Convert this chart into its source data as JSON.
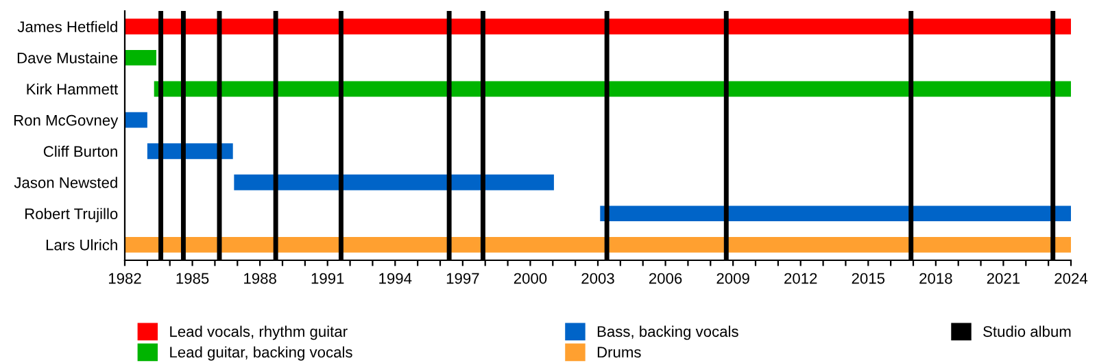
{
  "chart_data": {
    "type": "bar",
    "orientation": "horizontal",
    "categories": [
      "James Hetfield",
      "Dave Mustaine",
      "Kirk Hammett",
      "Ron McGovney",
      "Cliff Burton",
      "Jason Newsted",
      "Robert Trujillo",
      "Lars Ulrich"
    ],
    "series": [
      {
        "name": "Lead vocals, rhythm guitar",
        "color": "#ff0000",
        "values": [
          42,
          null,
          null,
          null,
          null,
          null,
          null,
          null
        ],
        "base": [
          1982,
          null,
          null,
          null,
          null,
          null,
          null,
          null
        ]
      },
      {
        "name": "Lead guitar, backing vocals",
        "color": "#00b400",
        "values": [
          null,
          1.4,
          40.7,
          null,
          null,
          null,
          null,
          null
        ],
        "base": [
          null,
          1982,
          1983.3,
          null,
          null,
          null,
          null,
          null
        ]
      },
      {
        "name": "Bass, backing vocals",
        "color": "#0064c8",
        "values": [
          null,
          null,
          null,
          1.0,
          3.8,
          14.2,
          20.9,
          null
        ],
        "base": [
          null,
          null,
          null,
          1982,
          1983.0,
          1986.85,
          2003.1,
          null
        ]
      },
      {
        "name": "Drums",
        "color": "#ffa030",
        "values": [
          null,
          null,
          null,
          null,
          null,
          null,
          null,
          42
        ],
        "base": [
          null,
          null,
          null,
          null,
          null,
          null,
          null,
          1982
        ]
      }
    ],
    "ref_lines": [
      {
        "axis": "x",
        "value": 1983.6,
        "label": "Studio album",
        "color": "#000000"
      },
      {
        "axis": "x",
        "value": 1984.6,
        "color": "#000000"
      },
      {
        "axis": "x",
        "value": 1986.2,
        "color": "#000000"
      },
      {
        "axis": "x",
        "value": 1988.7,
        "color": "#000000"
      },
      {
        "axis": "x",
        "value": 1991.6,
        "color": "#000000"
      },
      {
        "axis": "x",
        "value": 1996.4,
        "color": "#000000"
      },
      {
        "axis": "x",
        "value": 1997.9,
        "color": "#000000"
      },
      {
        "axis": "x",
        "value": 2003.4,
        "color": "#000000"
      },
      {
        "axis": "x",
        "value": 2008.7,
        "color": "#000000"
      },
      {
        "axis": "x",
        "value": 2016.9,
        "color": "#000000"
      },
      {
        "axis": "x",
        "value": 2023.2,
        "color": "#000000"
      }
    ],
    "xlim": [
      1982,
      2024
    ],
    "xticks": [
      1982,
      {
        "value": 1983,
        "label": null
      },
      {
        "value": 1984,
        "label": null
      },
      1985,
      {
        "value": 1986,
        "label": null
      },
      {
        "value": 1987,
        "label": null
      },
      1988,
      {
        "value": 1989,
        "label": null
      },
      {
        "value": 1990,
        "label": null
      },
      1991,
      {
        "value": 1992,
        "label": null
      },
      {
        "value": 1993,
        "label": null
      },
      1994,
      {
        "value": 1995,
        "label": null
      },
      {
        "value": 1996,
        "label": null
      },
      1997,
      {
        "value": 1998,
        "label": null
      },
      {
        "value": 1999,
        "label": null
      },
      2000,
      {
        "value": 2001,
        "label": null
      },
      {
        "value": 2002,
        "label": null
      },
      2003,
      {
        "value": 2004,
        "label": null
      },
      {
        "value": 2005,
        "label": null
      },
      2006,
      {
        "value": 2007,
        "label": null
      },
      {
        "value": 2008,
        "label": null
      },
      2009,
      {
        "value": 2010,
        "label": null
      },
      {
        "value": 2011,
        "label": null
      },
      2012,
      {
        "value": 2013,
        "label": null
      },
      {
        "value": 2014,
        "label": null
      },
      2015,
      {
        "value": 2016,
        "label": null
      },
      {
        "value": 2017,
        "label": null
      },
      2018,
      {
        "value": 2019,
        "label": null
      },
      {
        "value": 2020,
        "label": null
      },
      2021,
      {
        "value": 2022,
        "label": null
      },
      {
        "value": 2023,
        "label": null
      },
      2024
    ],
    "grid": false,
    "legend": "bottom"
  }
}
